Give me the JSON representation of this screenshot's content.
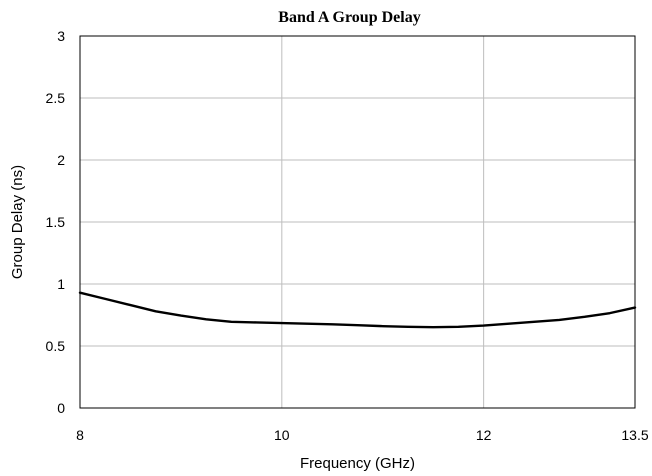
{
  "chart_data": {
    "type": "line",
    "title": "Band A Group Delay",
    "xlabel": "Frequency (GHz)",
    "ylabel": "Group Delay (ns)",
    "xlim": [
      8,
      13.5
    ],
    "ylim": [
      0,
      3
    ],
    "xticks": [
      8,
      10,
      12,
      13.5
    ],
    "xtick_labels": [
      "8",
      "10",
      "12",
      "13.5"
    ],
    "yticks": [
      0,
      0.5,
      1,
      1.5,
      2,
      2.5,
      3
    ],
    "ytick_labels": [
      "0",
      "0.5",
      "1",
      "1.5",
      "2",
      "2.5",
      "3"
    ],
    "grid": true,
    "legend": "none",
    "line_color": "#000000",
    "series": [
      {
        "x": [
          8.0,
          8.25,
          8.5,
          8.75,
          9.0,
          9.25,
          9.5,
          9.75,
          10.0,
          10.25,
          10.5,
          10.75,
          11.0,
          11.25,
          11.5,
          11.75,
          12.0,
          12.25,
          12.5,
          12.75,
          13.0,
          13.25,
          13.5
        ],
        "values": [
          0.93,
          0.88,
          0.83,
          0.78,
          0.745,
          0.715,
          0.695,
          0.69,
          0.685,
          0.68,
          0.675,
          0.668,
          0.66,
          0.655,
          0.652,
          0.655,
          0.665,
          0.68,
          0.695,
          0.71,
          0.735,
          0.765,
          0.81
        ]
      }
    ]
  }
}
